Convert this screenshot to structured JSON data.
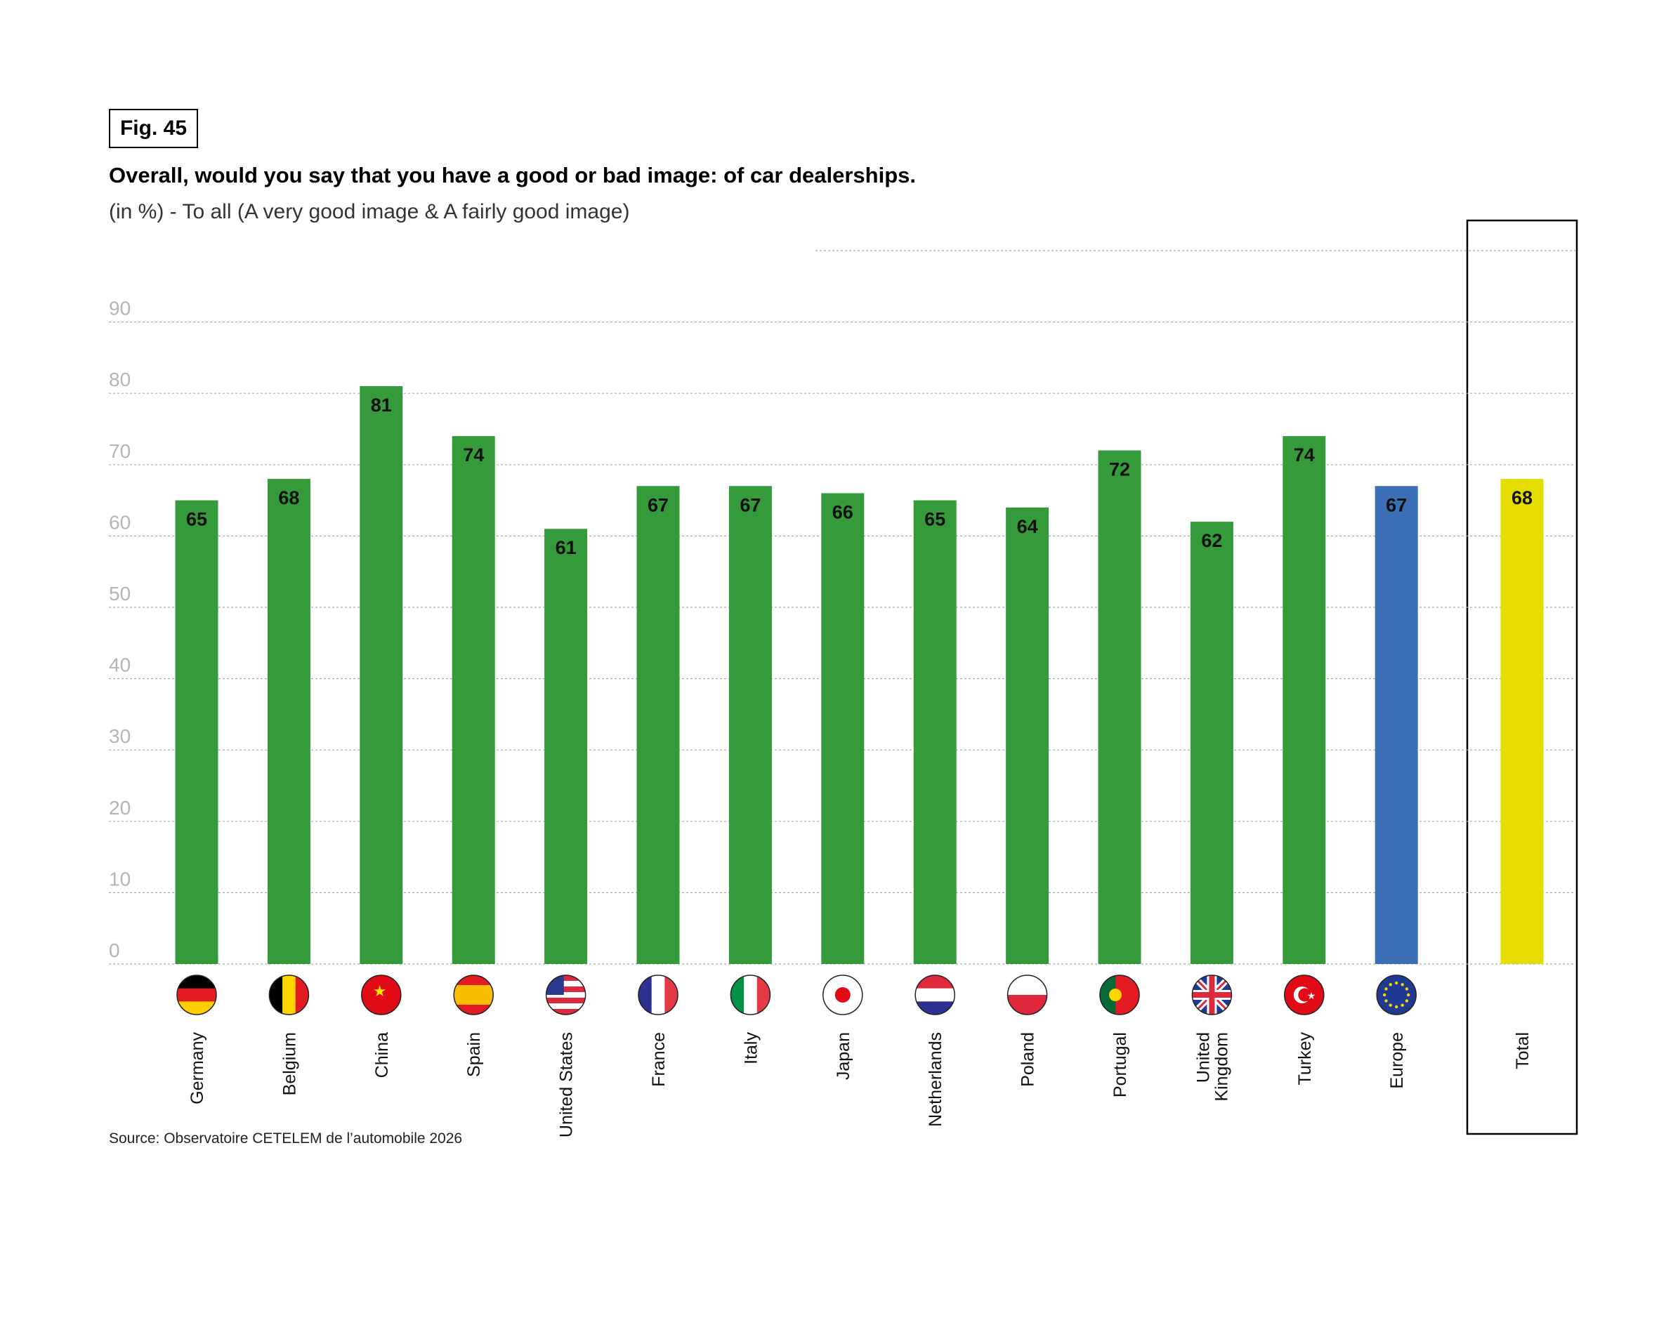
{
  "figure_label": "Fig. 45",
  "title": "Overall, would you say that you have a good or bad image: of car dealerships.",
  "subtitle": "(in %) - To all (A very good image & A fairly good image)",
  "source": "Source: Observatoire CETELEM de l’automobile 2026",
  "colors": {
    "country": "#359a3a",
    "europe": "#3b6fb6",
    "total": "#e5dd00",
    "grid": "#aaaaaa",
    "tick": "#b5b5b5"
  },
  "chart_data": {
    "type": "bar",
    "title": "Overall, would you say that you have a good or bad image: of car dealerships.",
    "xlabel": "",
    "ylabel": "%",
    "ylim": [
      0,
      100
    ],
    "yticks": [
      0,
      10,
      20,
      30,
      40,
      50,
      60,
      70,
      80,
      90
    ],
    "grid": true,
    "categories": [
      "Germany",
      "Belgium",
      "China",
      "Spain",
      "United States",
      "France",
      "Italy",
      "Japan",
      "Netherlands",
      "Poland",
      "Portugal",
      "United Kingdom",
      "Turkey",
      "Europe",
      "Total"
    ],
    "flags": [
      "germany-flag",
      "belgium-flag",
      "china-flag",
      "spain-flag",
      "usa-flag",
      "france-flag",
      "italy-flag",
      "japan-flag",
      "netherlands-flag",
      "poland-flag",
      "portugal-flag",
      "uk-flag",
      "turkey-flag",
      "eu-flag",
      null
    ],
    "groups": [
      "country",
      "country",
      "country",
      "country",
      "country",
      "country",
      "country",
      "country",
      "country",
      "country",
      "country",
      "country",
      "country",
      "europe",
      "total"
    ],
    "values": [
      65,
      68,
      81,
      74,
      61,
      67,
      67,
      66,
      65,
      64,
      72,
      62,
      74,
      67,
      68
    ]
  }
}
